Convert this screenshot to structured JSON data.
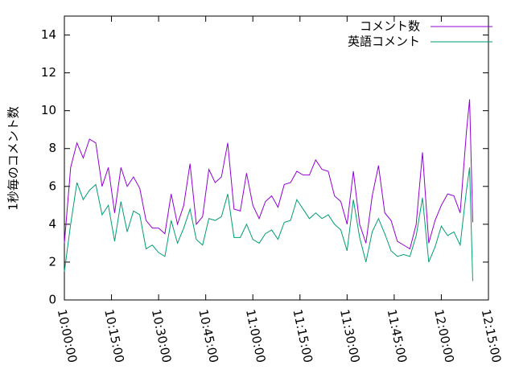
{
  "chart_data": {
    "type": "line",
    "ylabel": "1秒毎のコメント数",
    "x": [
      "10:00:00",
      "10:02:00",
      "10:04:00",
      "10:06:00",
      "10:08:00",
      "10:10:00",
      "10:12:00",
      "10:14:00",
      "10:16:00",
      "10:18:00",
      "10:20:00",
      "10:22:00",
      "10:24:00",
      "10:26:00",
      "10:28:00",
      "10:30:00",
      "10:32:00",
      "10:34:00",
      "10:36:00",
      "10:38:00",
      "10:40:00",
      "10:42:00",
      "10:44:00",
      "10:46:00",
      "10:48:00",
      "10:50:00",
      "10:52:00",
      "10:54:00",
      "10:56:00",
      "10:58:00",
      "11:00:00",
      "11:02:00",
      "11:04:00",
      "11:06:00",
      "11:08:00",
      "11:10:00",
      "11:12:00",
      "11:14:00",
      "11:16:00",
      "11:18:00",
      "11:20:00",
      "11:22:00",
      "11:24:00",
      "11:26:00",
      "11:28:00",
      "11:30:00",
      "11:32:00",
      "11:34:00",
      "11:36:00",
      "11:38:00",
      "11:40:00",
      "11:42:00",
      "11:44:00",
      "11:46:00",
      "11:48:00",
      "11:50:00",
      "11:52:00",
      "11:54:00",
      "11:56:00",
      "11:58:00",
      "12:00:00",
      "12:02:00",
      "12:04:00",
      "12:06:00",
      "12:08:00",
      "12:09:00",
      "12:10:00"
    ],
    "series": [
      {
        "name": "コメント数",
        "color": "#9400d3",
        "values": [
          3.0,
          7.0,
          8.3,
          7.5,
          8.5,
          8.3,
          6.0,
          7.0,
          4.6,
          7.0,
          6.0,
          6.5,
          5.9,
          4.2,
          3.8,
          3.8,
          3.5,
          5.6,
          4.0,
          5.0,
          7.2,
          4.0,
          4.4,
          6.9,
          6.2,
          6.5,
          8.3,
          4.8,
          4.7,
          6.7,
          5.0,
          4.3,
          5.2,
          5.5,
          4.9,
          6.1,
          6.2,
          6.8,
          6.6,
          6.6,
          7.4,
          6.9,
          6.8,
          5.5,
          5.2,
          4.0,
          6.8,
          4.0,
          3.0,
          5.5,
          7.1,
          4.6,
          4.2,
          3.1,
          2.9,
          2.7,
          4.0,
          7.8,
          3.0,
          4.2,
          5.0,
          5.6,
          5.5,
          4.6,
          8.9,
          10.6,
          4.1
        ]
      },
      {
        "name": "英語コメント",
        "color": "#009e73",
        "values": [
          1.5,
          4.0,
          6.2,
          5.3,
          5.8,
          6.1,
          4.5,
          5.0,
          3.1,
          5.2,
          3.6,
          4.7,
          4.5,
          2.7,
          2.9,
          2.5,
          2.3,
          4.2,
          3.0,
          3.8,
          4.8,
          3.2,
          2.9,
          4.3,
          4.2,
          4.4,
          5.6,
          3.3,
          3.3,
          4.0,
          3.2,
          3.0,
          3.5,
          3.7,
          3.2,
          4.1,
          4.2,
          5.3,
          4.8,
          4.3,
          4.6,
          4.3,
          4.5,
          4.0,
          3.7,
          2.6,
          5.3,
          3.3,
          2.0,
          3.6,
          4.3,
          3.5,
          2.6,
          2.3,
          2.4,
          2.3,
          3.4,
          5.4,
          2.0,
          2.8,
          3.9,
          3.4,
          3.6,
          2.9,
          5.8,
          7.0,
          1.0
        ]
      }
    ],
    "xlim": [
      "10:00:00",
      "12:15:00"
    ],
    "xticks": [
      "10:00:00",
      "10:15:00",
      "10:30:00",
      "10:45:00",
      "11:00:00",
      "11:15:00",
      "11:30:00",
      "11:45:00",
      "12:00:00",
      "12:15:00"
    ],
    "ylim": [
      0,
      15
    ],
    "yticks": [
      0,
      2,
      4,
      6,
      8,
      10,
      12,
      14
    ],
    "legend": "top-right",
    "grid": false
  }
}
